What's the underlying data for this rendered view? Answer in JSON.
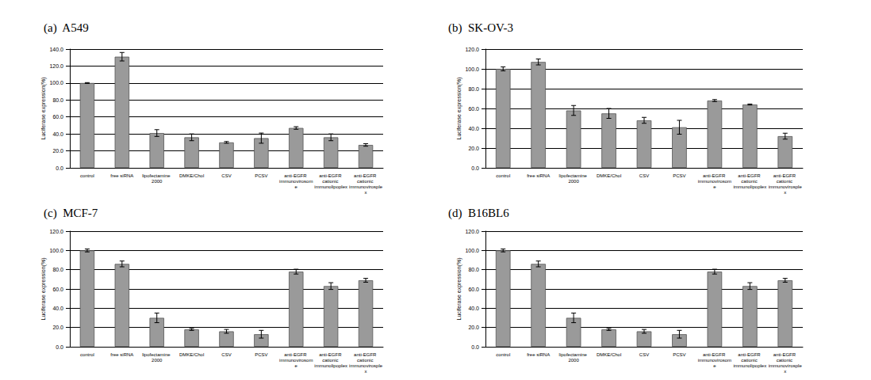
{
  "chart_data": [
    {
      "type": "bar",
      "title": "(a)  A549",
      "ylabel": "Luciferase expression(%)",
      "color": "#9a9a9a",
      "grid": true,
      "categories": [
        "control",
        "free siRNA",
        "lipofectamine 2000",
        "DMKE/Chol",
        "CSV",
        "PCSV",
        "anti-EGFR immunovirosome",
        "anti-EGFR cationic immunolipoplex",
        "anti-EGFR cationic immunovirosplex"
      ],
      "values": [
        100,
        131,
        41,
        36,
        30,
        35,
        47,
        36,
        27
      ],
      "errors": [
        0.5,
        5,
        4,
        4,
        1,
        6,
        1.5,
        4,
        1.5
      ],
      "ylim": [
        0,
        140
      ],
      "yticks": [
        {
          "value": 0,
          "label": "0.0"
        },
        {
          "value": 20,
          "label": "20.0"
        },
        {
          "value": 40,
          "label": "40.0"
        },
        {
          "value": 60,
          "label": "60.0"
        },
        {
          "value": 80,
          "label": "80.0"
        },
        {
          "value": 100,
          "label": "100.0"
        },
        {
          "value": 120,
          "label": "120.0"
        },
        {
          "value": 140,
          "label": "140.0"
        }
      ]
    },
    {
      "type": "bar",
      "title": "(b)  SK-OV-3",
      "ylabel": "Luciferase expression(%)",
      "color": "#9a9a9a",
      "grid": true,
      "categories": [
        "control",
        "free siRNA",
        "lipofectamine 2000",
        "DMKE/Chol",
        "CSV",
        "PCSV",
        "anti-EGFR immunovirosome",
        "anti-EGFR cationic immunolipoplex",
        "anti-EGFR cationic immunovirosplex"
      ],
      "values": [
        100,
        107,
        58,
        55,
        48,
        41,
        68,
        64,
        32
      ],
      "errors": [
        2,
        3,
        5,
        5,
        3,
        7,
        1,
        0.5,
        3
      ],
      "ylim": [
        0,
        120
      ],
      "yticks": [
        {
          "value": 0,
          "label": "0.0"
        },
        {
          "value": 20,
          "label": "20.0"
        },
        {
          "value": 40,
          "label": "40.0"
        },
        {
          "value": 60,
          "label": "60.0"
        },
        {
          "value": 80,
          "label": "80.0"
        },
        {
          "value": 100,
          "label": "100.0"
        },
        {
          "value": 120,
          "label": "120.0"
        }
      ]
    },
    {
      "type": "bar",
      "title": "(c)  MCF-7",
      "ylabel": "Luciferase expression(%)",
      "color": "#9a9a9a",
      "grid": true,
      "categories": [
        "control",
        "free siRNA",
        "lipofectamine 2000",
        "DMKE/Chol",
        "CSV",
        "PCSV",
        "anti-EGFR immunovirosome",
        "anti-EGFR cationic immunolipoplex",
        "anti-EGFR cationic immunovirosplex"
      ],
      "values": [
        100,
        86,
        30,
        18,
        16,
        13,
        78,
        63,
        69
      ],
      "errors": [
        1.5,
        3,
        5,
        1,
        2,
        4,
        2.5,
        3.5,
        2
      ],
      "ylim": [
        0,
        120
      ],
      "yticks": [
        {
          "value": 0,
          "label": "0.0"
        },
        {
          "value": 20,
          "label": "20.0"
        },
        {
          "value": 40,
          "label": "40.0"
        },
        {
          "value": 60,
          "label": "60.0"
        },
        {
          "value": 80,
          "label": "80.0"
        },
        {
          "value": 100,
          "label": "100.0"
        },
        {
          "value": 120,
          "label": "120.0"
        }
      ]
    },
    {
      "type": "bar",
      "title": "(d)  B16BL6",
      "ylabel": "Luciferase expression(%)",
      "color": "#9a9a9a",
      "grid": true,
      "categories": [
        "control",
        "free siRNA",
        "lipofectamine 2000",
        "DMKE/Chol",
        "CSV",
        "PCSV",
        "anti-EGFR immunovirosome",
        "anti-EGFR cationic immunolipoplex",
        "anti-EGFR cationic immunovirosplex"
      ],
      "values": [
        100,
        86,
        30,
        18,
        16,
        13,
        78,
        63,
        69
      ],
      "errors": [
        1.5,
        3,
        5,
        1,
        2,
        4,
        2.5,
        3.5,
        2
      ],
      "ylim": [
        0,
        120
      ],
      "yticks": [
        {
          "value": 0,
          "label": "0.0"
        },
        {
          "value": 20,
          "label": "20.0"
        },
        {
          "value": 40,
          "label": "40.0"
        },
        {
          "value": 60,
          "label": "60.0"
        },
        {
          "value": 80,
          "label": "80.0"
        },
        {
          "value": 100,
          "label": "100.0"
        },
        {
          "value": 120,
          "label": "120.0"
        }
      ]
    }
  ]
}
